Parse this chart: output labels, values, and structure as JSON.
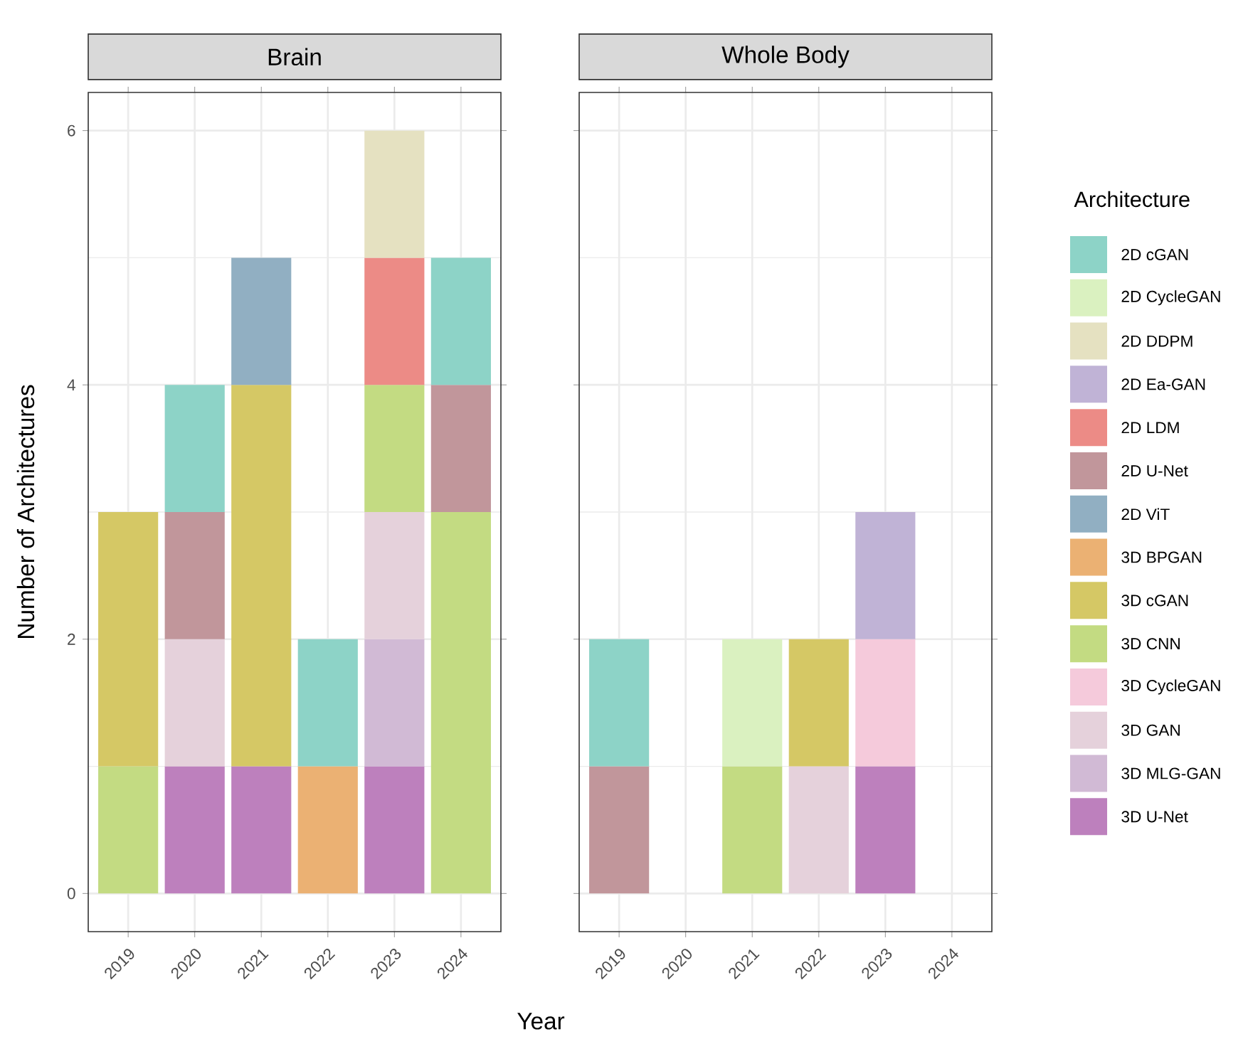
{
  "chart_data": [
    {
      "type": "bar",
      "title": "Brain",
      "xlabel": "Year",
      "ylabel": "Number of Architectures",
      "stacked": true,
      "grid": true,
      "legend": false,
      "categories": [
        "2019",
        "2020",
        "2021",
        "2022",
        "2023",
        "2024"
      ],
      "ylim": [
        -0.3,
        6.3
      ],
      "yticks": [
        0,
        2,
        4,
        6
      ],
      "series": [
        {
          "color": "#bd80bd",
          "values": [
            null,
            1,
            1,
            null,
            1,
            null
          ]
        },
        {
          "color": "#d1bad5",
          "values": [
            null,
            null,
            null,
            null,
            1,
            null
          ]
        },
        {
          "color": "#e5d1db",
          "values": [
            null,
            1,
            null,
            null,
            1,
            null
          ]
        },
        {
          "color": "#c3db82",
          "values": [
            1,
            null,
            null,
            null,
            1,
            3
          ]
        },
        {
          "color": "#d5c865",
          "values": [
            2,
            null,
            3,
            null,
            null,
            null
          ]
        },
        {
          "color": "#ebb173",
          "values": [
            null,
            null,
            null,
            1,
            null,
            null
          ]
        },
        {
          "color": "#91afc2",
          "values": [
            null,
            null,
            1,
            null,
            null,
            null
          ]
        },
        {
          "color": "#c1969b",
          "values": [
            null,
            1,
            null,
            null,
            null,
            1
          ]
        },
        {
          "color": "#ec8b86",
          "values": [
            null,
            null,
            null,
            null,
            1,
            null
          ]
        },
        {
          "color": "#e5e1c1",
          "values": [
            null,
            null,
            null,
            null,
            1,
            null
          ]
        },
        {
          "color": "#8dd3c7",
          "values": [
            null,
            1,
            null,
            1,
            null,
            1
          ]
        }
      ]
    },
    {
      "type": "bar",
      "title": "Whole Body",
      "legend_title": "Architecture",
      "stacked": true,
      "grid": true,
      "legend": "right",
      "tick_labels": "x",
      "categories": [
        "2019",
        "2020",
        "2021",
        "2022",
        "2023",
        "2024"
      ],
      "ylim": [
        -0.3,
        6.3
      ],
      "yticks": [
        0,
        2,
        4,
        6
      ],
      "series": [
        {
          "name": "3D U-Net",
          "color": "#bd80bd",
          "values": [
            null,
            null,
            null,
            null,
            1,
            null
          ]
        },
        {
          "name": "3D MLG-GAN",
          "color": "#d1bad5",
          "values": [
            null,
            null,
            null,
            null,
            null,
            null
          ]
        },
        {
          "name": "3D GAN",
          "color": "#e5d1db",
          "values": [
            null,
            null,
            null,
            1,
            null,
            null
          ]
        },
        {
          "name": "3D CycleGAN",
          "color": "#f5cadb",
          "values": [
            null,
            null,
            null,
            null,
            1,
            null
          ]
        },
        {
          "name": "3D CNN",
          "color": "#c3db82",
          "values": [
            null,
            null,
            1,
            null,
            null,
            null
          ]
        },
        {
          "name": "3D cGAN",
          "color": "#d5c865",
          "values": [
            null,
            null,
            null,
            1,
            null,
            null
          ]
        },
        {
          "name": "3D BPGAN",
          "color": "#ebb173",
          "values": [
            null,
            null,
            null,
            null,
            null,
            null
          ]
        },
        {
          "name": "2D ViT",
          "color": "#91afc2",
          "values": [
            null,
            null,
            null,
            null,
            null,
            null
          ]
        },
        {
          "name": "2D U-Net",
          "color": "#c1969b",
          "values": [
            1,
            null,
            null,
            null,
            null,
            null
          ]
        },
        {
          "name": "2D LDM",
          "color": "#ec8b86",
          "values": [
            null,
            null,
            null,
            null,
            null,
            null
          ]
        },
        {
          "name": "2D Ea-GAN",
          "color": "#c0b3d6",
          "values": [
            null,
            null,
            null,
            null,
            1,
            null
          ]
        },
        {
          "name": "2D DDPM",
          "color": "#e5e1c1",
          "values": [
            null,
            null,
            null,
            null,
            null,
            null
          ]
        },
        {
          "name": "2D CycleGAN",
          "color": "#daf1c0",
          "values": [
            null,
            null,
            1,
            null,
            null,
            null
          ]
        },
        {
          "name": "2D cGAN",
          "color": "#8dd3c7",
          "values": [
            1,
            null,
            null,
            null,
            null,
            null
          ]
        }
      ]
    }
  ]
}
